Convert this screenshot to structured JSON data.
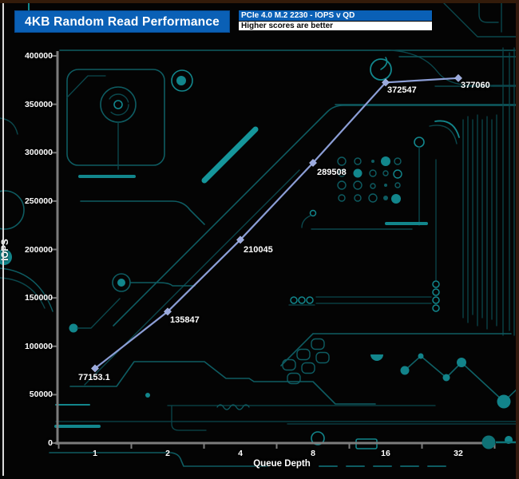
{
  "header": {
    "title": "4KB Random Read Performance",
    "subtitle": "PCIe 4.0 M.2 2230 - IOPS v QD",
    "note": "Higher scores are better"
  },
  "chart_data": {
    "type": "line",
    "title": "4KB Random Read Performance",
    "series": [
      {
        "name": "PCIe 4.0 M.2 2230 - IOPS v QD",
        "values": [
          77153.1,
          135847,
          210045,
          289508,
          372547,
          377060
        ]
      }
    ],
    "x": [
      1,
      2,
      4,
      8,
      16,
      32
    ],
    "x_axis_scale": "log2-categorical",
    "point_labels": [
      "77153.1",
      "135847",
      "210045",
      "289508",
      "372547",
      "377060"
    ],
    "xlabel": "Queue Depth",
    "ylabel": "IOPS",
    "ylim": [
      0,
      400000
    ],
    "ytick_step": 50000,
    "yticks": [
      "400000",
      "350000",
      "300000",
      "250000",
      "200000",
      "150000",
      "100000",
      "50000",
      "0"
    ],
    "xticks": [
      "1",
      "2",
      "4",
      "8",
      "16",
      "32"
    ],
    "grid": false,
    "legend": "none",
    "note": "Higher scores are better",
    "line_color": "#8c9ed6",
    "marker_color": "#9aa9dd",
    "marker": "diamond",
    "axis_color": "#7d7d7d",
    "background_style": "black circuit board with teal traces",
    "accent_teal": "#0f7276"
  }
}
